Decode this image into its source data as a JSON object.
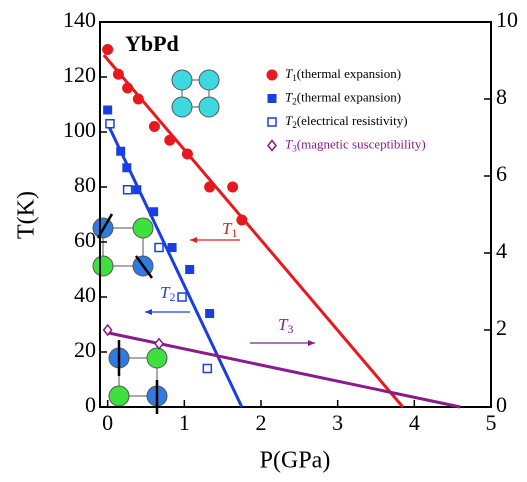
{
  "chart_data": {
    "type": "scatter",
    "title": "YbPd",
    "xlabel": "P(GPa)",
    "ylabel": "T(K)",
    "xlim": [
      -0.1,
      5
    ],
    "xticks": [
      0,
      1,
      2,
      3,
      4,
      5
    ],
    "ylim": [
      0,
      140
    ],
    "yticks": [
      0,
      20,
      40,
      60,
      80,
      100,
      120,
      140
    ],
    "y2lim": [
      0,
      10
    ],
    "y2ticks": [
      0,
      2,
      4,
      6,
      8,
      10
    ],
    "series": [
      {
        "name": "T1(thermal expansion)",
        "color": "#e8191e",
        "marker": "circle",
        "x": [
          0.0,
          0.14,
          0.26,
          0.4,
          0.61,
          0.81,
          1.04,
          1.33,
          1.63,
          1.75
        ],
        "values": [
          130,
          121,
          116,
          112,
          102,
          97,
          92,
          80,
          80,
          68
        ]
      },
      {
        "name": "T2(thermal expansion)",
        "color": "#1a3fe0",
        "marker": "square",
        "x": [
          0.0,
          0.17,
          0.25,
          0.38,
          0.6,
          0.84,
          1.07,
          1.33
        ],
        "values": [
          108,
          93,
          87,
          79,
          71,
          58,
          50,
          34
        ]
      },
      {
        "name": "T2(electrical resistivity)",
        "color": "#1a3fe0",
        "marker": "open-square",
        "x": [
          0.03,
          0.26,
          0.67,
          0.97,
          1.3
        ],
        "values": [
          103,
          79,
          58,
          40,
          14
        ]
      },
      {
        "name": "T3(magnetic susceptibility)",
        "color": "#8b1a8b",
        "marker": "open-diamond",
        "x": [
          0.0,
          0.67
        ],
        "values": [
          28,
          23
        ]
      }
    ],
    "lines": [
      {
        "color": "#e8191e",
        "x": [
          -0.05,
          3.85
        ],
        "values": [
          128,
          0
        ]
      },
      {
        "color": "#1a3fe0",
        "x": [
          0.0,
          1.75
        ],
        "values": [
          103,
          0
        ]
      },
      {
        "color": "#8b1a8b",
        "x": [
          0.0,
          4.6
        ],
        "values": [
          27,
          0
        ]
      }
    ],
    "annotations": [
      "T1",
      "T2",
      "T3"
    ]
  }
}
